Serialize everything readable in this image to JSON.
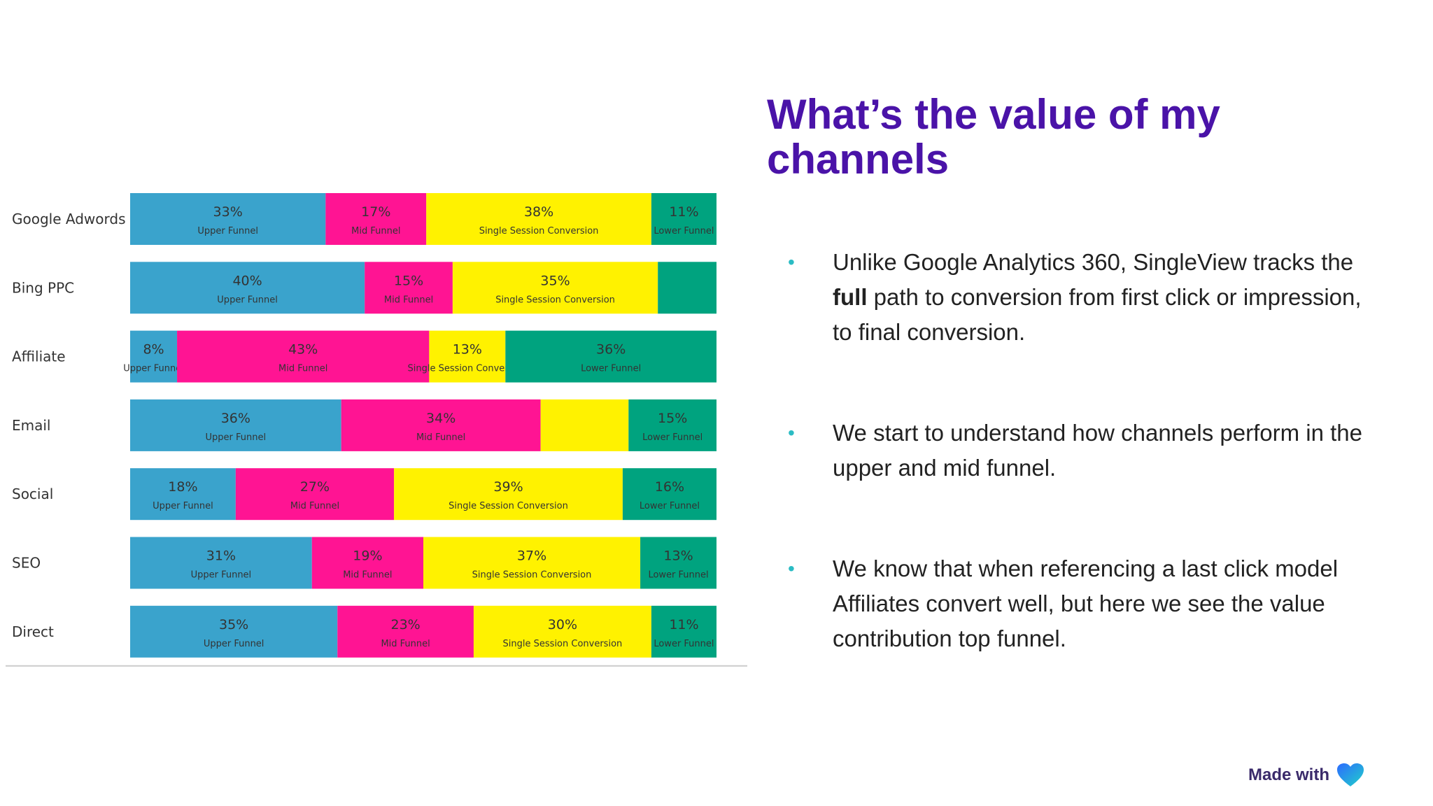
{
  "slide": {
    "title": "What’s the value of my channels",
    "bullets": [
      {
        "pre": "Unlike Google Analytics 360, SingleView tracks the ",
        "bold": "full",
        "post": " path to conversion from first click or impression, to final conversion."
      },
      {
        "pre": "We start to understand how channels perform in the upper and mid funnel.",
        "bold": "",
        "post": ""
      },
      {
        "pre": "We know that when referencing a last click model Affiliates convert well, but here we see the value contribution top funnel.",
        "bold": "",
        "post": ""
      }
    ],
    "bullet_glyph": "•"
  },
  "footer": {
    "made_with": "Made with",
    "icon": "heart-icon"
  },
  "chart_data": {
    "type": "bar",
    "orientation": "horizontal",
    "stacked": true,
    "normalized_percent": true,
    "categories": [
      "Google Adwords",
      "Bing PPC",
      "Affiliate",
      "Email",
      "Social",
      "SEO",
      "Direct"
    ],
    "series": [
      {
        "name": "Upper Funnel",
        "color": "#3aa3cc",
        "values": [
          33,
          40,
          8,
          36,
          18,
          31,
          35
        ],
        "labels": [
          "33%",
          "40%",
          "8%",
          "36%",
          "18%",
          "31%",
          "35%"
        ],
        "stage": [
          "Upper Funnel",
          "Upper Funnel",
          "Upper Funnel",
          "Upper Funnel",
          "Upper Funnel",
          "Upper Funnel",
          "Upper Funnel"
        ]
      },
      {
        "name": "Mid Funnel",
        "color": "#ff1493",
        "values": [
          17,
          15,
          43,
          34,
          27,
          19,
          23
        ],
        "labels": [
          "17%",
          "15%",
          "43%",
          "34%",
          "27%",
          "19%",
          "23%"
        ],
        "stage": [
          "Mid Funnel",
          "Mid Funnel",
          "Mid Funnel",
          "Mid Funnel",
          "Mid Funnel",
          "Mid Funnel",
          "Mid Funnel"
        ]
      },
      {
        "name": "Single Session Conversion",
        "color": "#fff200",
        "values": [
          38,
          35,
          13,
          15,
          39,
          37,
          30
        ],
        "labels": [
          "38%",
          "35%",
          "13%",
          "",
          "39%",
          "37%",
          "30%"
        ],
        "stage": [
          "Single Session Conversion",
          "Single Session Conversion",
          "Single Session Conversion",
          "",
          "Single Session Conversion",
          "Single Session Conversion",
          "Single Session Conversion"
        ]
      },
      {
        "name": "Lower Funnel",
        "color": "#00a37f",
        "values": [
          11,
          10,
          36,
          15,
          16,
          13,
          11
        ],
        "labels": [
          "11%",
          "",
          "36%",
          "15%",
          "16%",
          "13%",
          "11%"
        ],
        "stage": [
          "Lower Funnel",
          "",
          "Lower Funnel",
          "Lower Funnel",
          "Lower Funnel",
          "Lower Funnel",
          "Lower Funnel"
        ]
      }
    ],
    "xlim": [
      0,
      100
    ],
    "legend": "none",
    "grid": false,
    "baseline_rule": true
  }
}
